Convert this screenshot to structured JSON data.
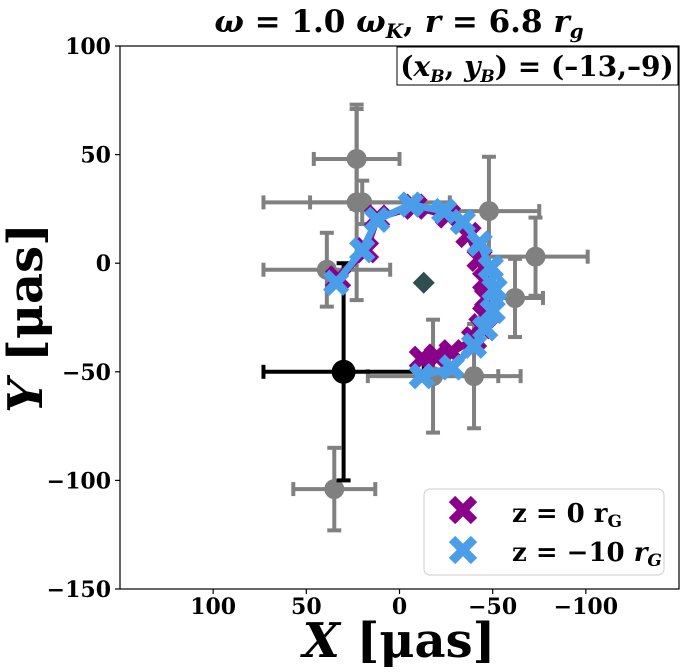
{
  "chart_data": {
    "type": "scatter",
    "title": "ω = 1.0 ω_K, r = 6.8 r_g",
    "title_parts": {
      "omega_sym": "ω",
      "eq1": " = 1.0 ",
      "omega_k": "ω",
      "k_sub": "K",
      "sep": ", ",
      "r_sym": "r",
      "eq2": " = 6.8 ",
      "r_unit": "r",
      "g_sub": "g"
    },
    "annotation": "(x_B, y_B) = (–13,–9)",
    "annotation_parts": {
      "open": "(",
      "x": "x",
      "b1": "B",
      "comma": ", ",
      "y": "y",
      "b2": "B",
      "close": ") = (–13,–9)"
    },
    "xlabel": "X [μas]",
    "xlabel_parts": {
      "var": "X",
      "unit": " [μas]"
    },
    "ylabel": "Y [μas]",
    "ylabel_parts": {
      "var": "Y",
      "unit": " [μas]"
    },
    "xlim": [
      150,
      -150
    ],
    "ylim": [
      -150,
      100
    ],
    "x_inverted": true,
    "grid": false,
    "legend_position": "lower-right",
    "x_ticks": [
      {
        "value": 100,
        "label": "100"
      },
      {
        "value": 50,
        "label": "50"
      },
      {
        "value": 0,
        "label": "0"
      },
      {
        "value": -50,
        "label": "−50"
      },
      {
        "value": -100,
        "label": "−100"
      }
    ],
    "y_ticks": [
      {
        "value": 100,
        "label": "100"
      },
      {
        "value": 50,
        "label": "50"
      },
      {
        "value": 0,
        "label": "0"
      },
      {
        "value": -50,
        "label": "−50"
      },
      {
        "value": -100,
        "label": "−100"
      },
      {
        "value": -150,
        "label": "−150"
      }
    ],
    "observations": {
      "color": "#808080",
      "points": [
        {
          "x": 23,
          "y": 48,
          "xerr": 23,
          "yerr": 23
        },
        {
          "x": 23,
          "y": 28,
          "xerr": 50,
          "yerr": 45
        },
        {
          "x": 20,
          "y": 28,
          "xerr": 28,
          "yerr": 10
        },
        {
          "x": 39,
          "y": -3,
          "xerr": 34,
          "yerr": 17
        },
        {
          "x": -48,
          "y": 24,
          "xerr": 27,
          "yerr": 25
        },
        {
          "x": -73,
          "y": 3,
          "xerr": 28,
          "yerr": 18
        },
        {
          "x": -40,
          "y": -52,
          "xerr": 25,
          "yerr": 24
        },
        {
          "x": -18,
          "y": -52,
          "xerr": 35,
          "yerr": 26
        },
        {
          "x": -62,
          "y": -16,
          "xerr": 15,
          "yerr": 18
        },
        {
          "x": 35,
          "y": -104,
          "xerr": 22,
          "yerr": 19
        }
      ]
    },
    "reference_point": {
      "x": 30,
      "y": -50,
      "xerr": 43,
      "yerr": 50,
      "color": "#000000"
    },
    "center_marker": {
      "x": -13,
      "y": -9,
      "color": "#2f4f4f"
    },
    "series": [
      {
        "name": "z = 0 r_G",
        "legend_parts": {
          "z": "z",
          "eq": " = 0 ",
          "r": "r",
          "sub": "G"
        },
        "color": "#8b008b",
        "x": [
          -12,
          -20,
          -28,
          -40,
          -44,
          -46,
          -47,
          -46,
          -43,
          -37,
          -26,
          -8,
          12,
          18,
          33
        ],
        "y": [
          -44,
          -43,
          -41,
          -35,
          -29,
          -24,
          -16,
          -8,
          2,
          13,
          22,
          26,
          21,
          6,
          -7
        ]
      },
      {
        "name": "z = −10 r_G",
        "legend_parts": {
          "z": "z",
          "eq": " = −10 ",
          "r": "r",
          "sub": "G"
        },
        "color": "#4a9de8",
        "x": [
          -12,
          -28,
          -40,
          -46,
          -50,
          -51,
          -49,
          -43,
          -34,
          -24,
          -6,
          12,
          20,
          34
        ],
        "y": [
          -52,
          -48,
          -38,
          -30,
          -22,
          -12,
          -2,
          9,
          19,
          24,
          27,
          20,
          6,
          -9
        ]
      }
    ]
  }
}
